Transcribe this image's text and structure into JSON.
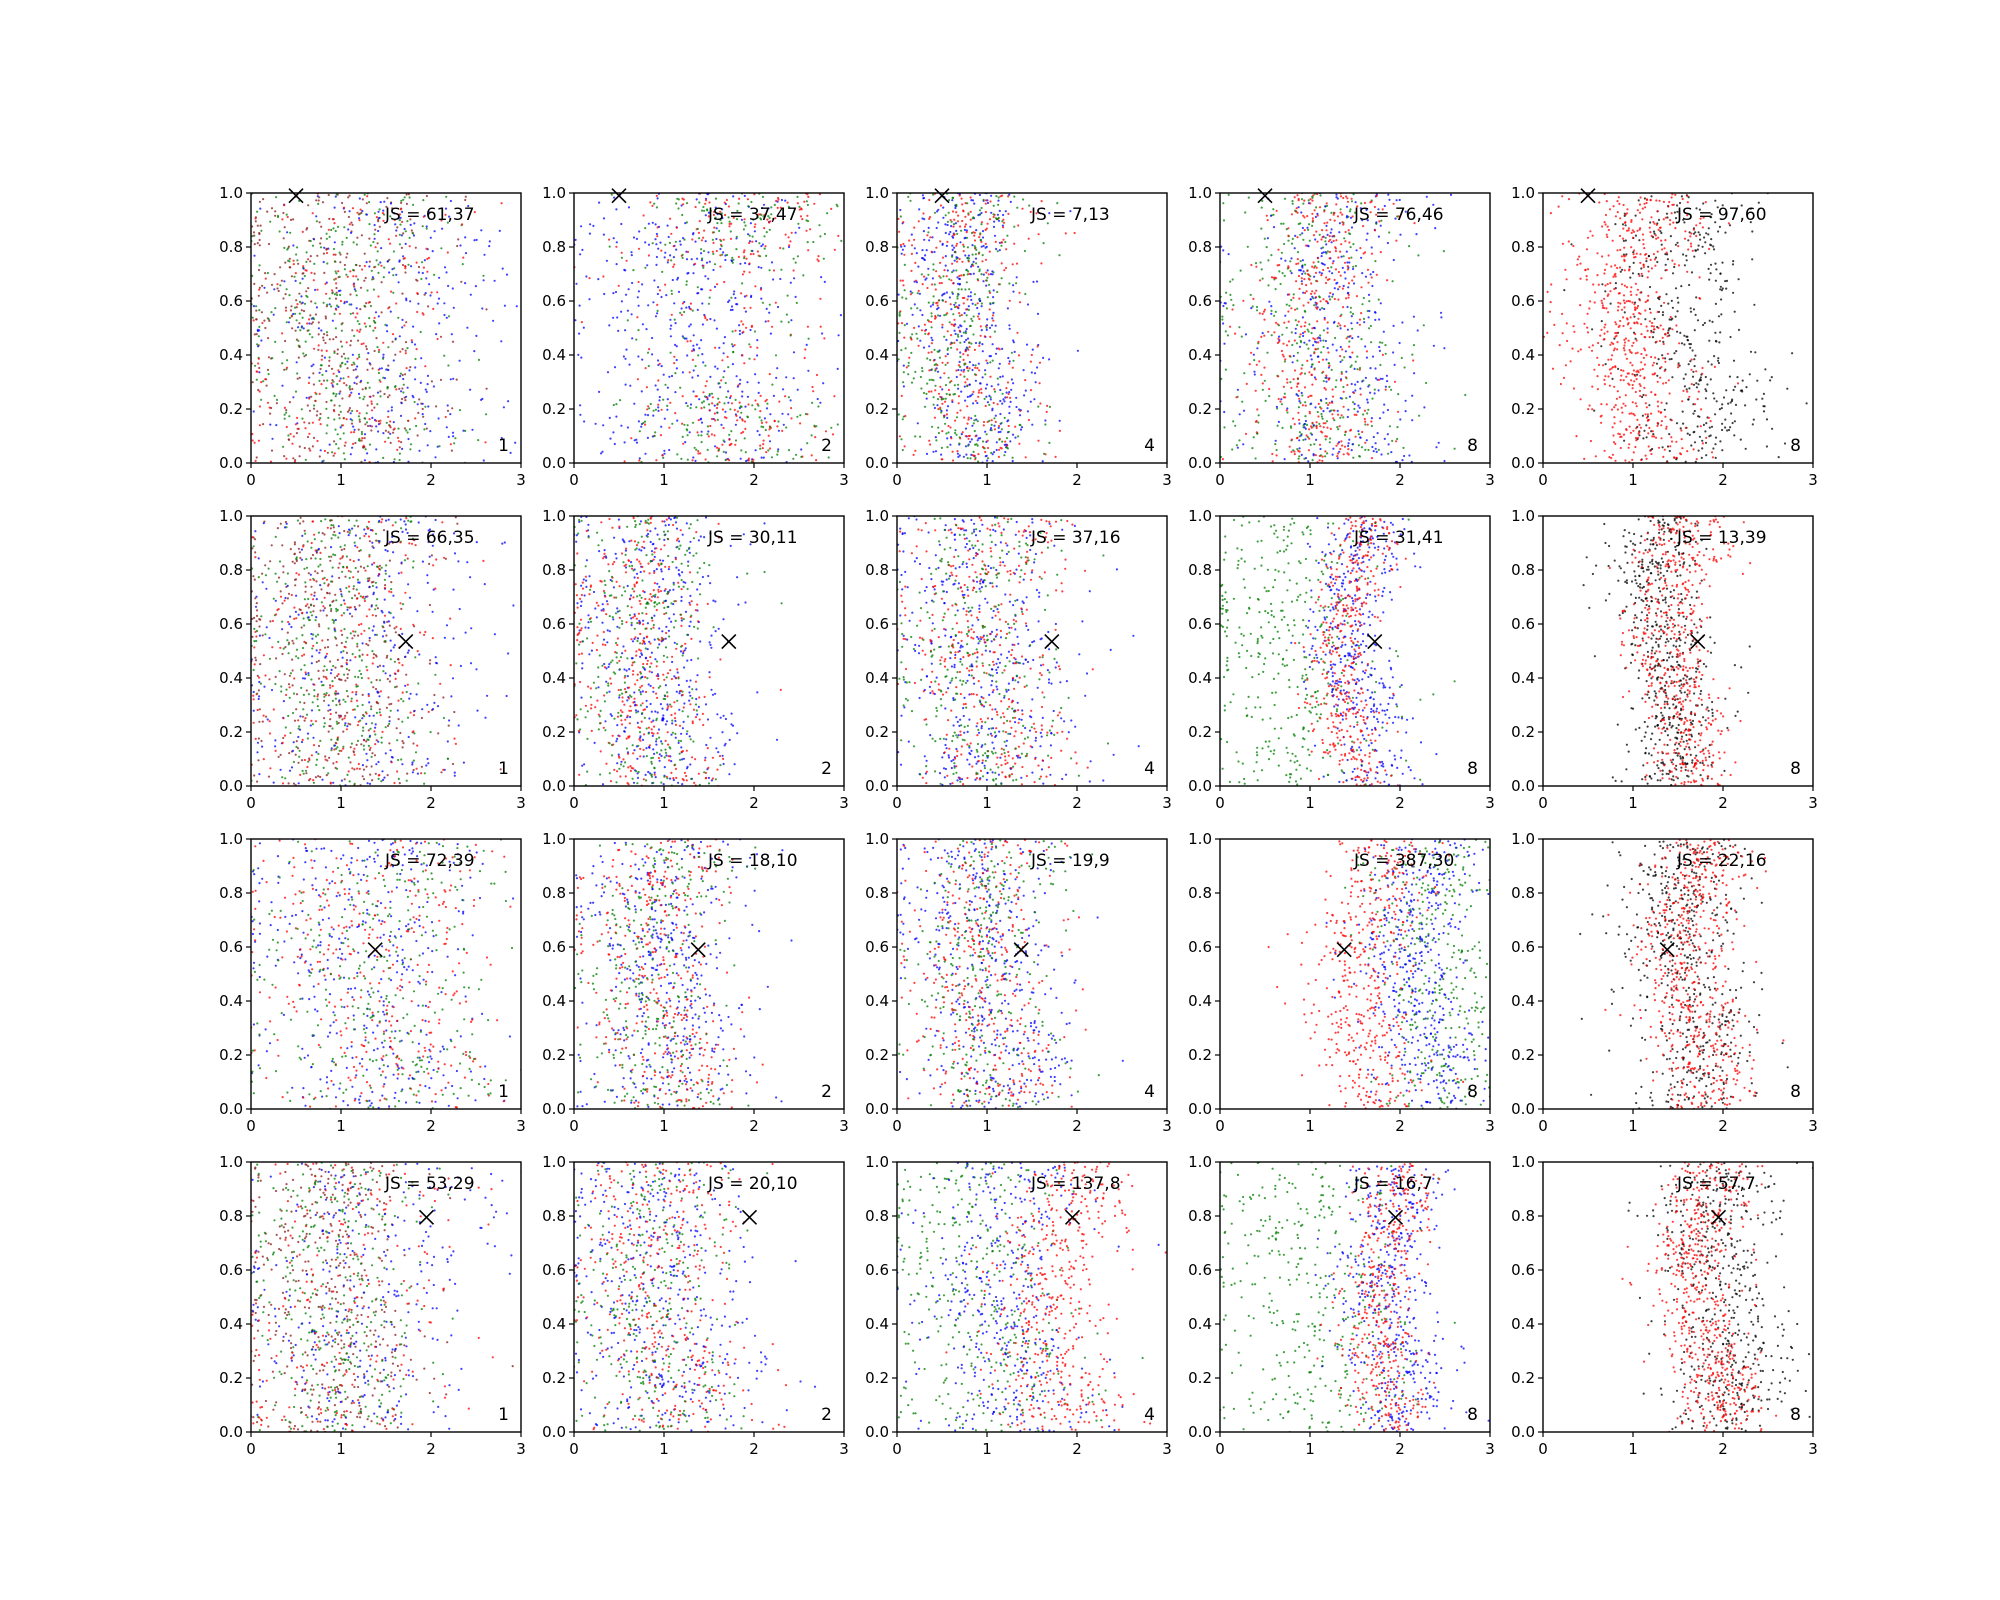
{
  "figure": {
    "rows": 4,
    "cols": 5,
    "xlim": [
      0,
      3
    ],
    "ylim": [
      0,
      1
    ],
    "x_ticks": [
      "0",
      "1",
      "2",
      "3"
    ],
    "y_ticks": [
      "0.0",
      "0.2",
      "0.4",
      "0.6",
      "0.8",
      "1.0"
    ],
    "marker": "x",
    "marker_color": "#000000",
    "colors": {
      "red": "#ff0000",
      "green": "#008000",
      "blue": "#0000ff",
      "black": "#000000",
      "brown": "#8b1a1a"
    }
  },
  "chart_data": [
    {
      "type": "scatter",
      "row": 0,
      "col": 0,
      "js_label": "JS = 61,37",
      "corner_label": "1",
      "marker": [
        0.5,
        0.99
      ],
      "series": [
        {
          "color": "#8b1a1a",
          "mean_x": 1.0,
          "spread_x": 0.6,
          "count": 380
        },
        {
          "color": "#008000",
          "mean_x": 1.05,
          "spread_x": 0.55,
          "count": 340
        },
        {
          "color": "#0000ff",
          "mean_x": 1.5,
          "spread_x": 0.7,
          "count": 300
        },
        {
          "color": "#ff0000",
          "mean_x": 1.1,
          "spread_x": 0.7,
          "count": 220
        }
      ]
    },
    {
      "type": "scatter",
      "row": 0,
      "col": 1,
      "js_label": "JS = 37,47",
      "corner_label": "2",
      "marker": [
        0.5,
        0.99
      ],
      "series": [
        {
          "color": "#0000ff",
          "mean_x": 1.4,
          "spread_x": 0.7,
          "count": 420
        },
        {
          "color": "#ff0000",
          "mean_x": 1.7,
          "spread_x": 0.6,
          "count": 320,
          "edge_bias": true
        },
        {
          "color": "#008000",
          "mean_x": 1.7,
          "spread_x": 0.6,
          "count": 280,
          "edge_bias": true
        }
      ]
    },
    {
      "type": "scatter",
      "row": 0,
      "col": 2,
      "js_label": "JS = 7,13",
      "corner_label": "4",
      "marker": [
        0.5,
        0.99
      ],
      "series": [
        {
          "color": "#0000ff",
          "mean_x": 0.85,
          "spread_x": 0.35,
          "count": 420
        },
        {
          "color": "#ff0000",
          "mean_x": 0.75,
          "spread_x": 0.4,
          "count": 360
        },
        {
          "color": "#008000",
          "mean_x": 0.7,
          "spread_x": 0.4,
          "count": 320
        }
      ]
    },
    {
      "type": "scatter",
      "row": 0,
      "col": 3,
      "js_label": "JS = 76,46",
      "corner_label": "8",
      "marker": [
        0.5,
        0.99
      ],
      "series": [
        {
          "color": "#008000",
          "mean_x": 1.0,
          "spread_x": 0.55,
          "count": 360
        },
        {
          "color": "#0000ff",
          "mean_x": 1.3,
          "spread_x": 0.5,
          "count": 360
        },
        {
          "color": "#ff0000",
          "mean_x": 1.1,
          "spread_x": 0.35,
          "count": 420
        }
      ]
    },
    {
      "type": "scatter",
      "row": 0,
      "col": 4,
      "js_label": "JS = 97,60",
      "corner_label": "8",
      "marker": [
        0.5,
        0.99
      ],
      "series": [
        {
          "color": "#000000",
          "mean_x": 1.6,
          "spread_x": 0.4,
          "count": 420
        },
        {
          "color": "#ff0000",
          "mean_x": 1.05,
          "spread_x": 0.35,
          "count": 620
        }
      ]
    },
    {
      "type": "scatter",
      "row": 1,
      "col": 0,
      "js_label": "JS = 66,35",
      "corner_label": "1",
      "marker": [
        1.72,
        0.535
      ],
      "series": [
        {
          "color": "#8b1a1a",
          "mean_x": 0.9,
          "spread_x": 0.55,
          "count": 380
        },
        {
          "color": "#008000",
          "mean_x": 0.95,
          "spread_x": 0.5,
          "count": 340
        },
        {
          "color": "#0000ff",
          "mean_x": 1.3,
          "spread_x": 0.7,
          "count": 300
        },
        {
          "color": "#ff0000",
          "mean_x": 1.0,
          "spread_x": 0.6,
          "count": 240
        }
      ]
    },
    {
      "type": "scatter",
      "row": 1,
      "col": 1,
      "js_label": "JS = 30,11",
      "corner_label": "2",
      "marker": [
        1.72,
        0.535
      ],
      "series": [
        {
          "color": "#0000ff",
          "mean_x": 0.9,
          "spread_x": 0.45,
          "count": 420
        },
        {
          "color": "#ff0000",
          "mean_x": 0.8,
          "spread_x": 0.4,
          "count": 380
        },
        {
          "color": "#008000",
          "mean_x": 0.8,
          "spread_x": 0.4,
          "count": 300
        }
      ]
    },
    {
      "type": "scatter",
      "row": 1,
      "col": 2,
      "js_label": "JS = 37,16",
      "corner_label": "4",
      "marker": [
        1.72,
        0.535
      ],
      "series": [
        {
          "color": "#0000ff",
          "mean_x": 1.0,
          "spread_x": 0.5,
          "count": 420
        },
        {
          "color": "#ff0000",
          "mean_x": 1.0,
          "spread_x": 0.45,
          "count": 380
        },
        {
          "color": "#008000",
          "mean_x": 0.9,
          "spread_x": 0.45,
          "count": 300
        }
      ]
    },
    {
      "type": "scatter",
      "row": 1,
      "col": 3,
      "js_label": "JS = 31,41",
      "corner_label": "8",
      "marker": [
        1.72,
        0.535
      ],
      "series": [
        {
          "color": "#008000",
          "mean_x": 0.8,
          "spread_x": 0.5,
          "count": 380
        },
        {
          "color": "#0000ff",
          "mean_x": 1.55,
          "spread_x": 0.25,
          "count": 420
        },
        {
          "color": "#ff0000",
          "mean_x": 1.45,
          "spread_x": 0.2,
          "count": 420
        }
      ]
    },
    {
      "type": "scatter",
      "row": 1,
      "col": 4,
      "js_label": "JS = 13,39",
      "corner_label": "8",
      "marker": [
        1.72,
        0.535
      ],
      "series": [
        {
          "color": "#000000",
          "mean_x": 1.35,
          "spread_x": 0.25,
          "count": 560
        },
        {
          "color": "#ff0000",
          "mean_x": 1.5,
          "spread_x": 0.25,
          "count": 560
        }
      ]
    },
    {
      "type": "scatter",
      "row": 2,
      "col": 0,
      "js_label": "JS = 72,39",
      "corner_label": "1",
      "marker": [
        1.38,
        0.59
      ],
      "series": [
        {
          "color": "#0000ff",
          "mean_x": 1.3,
          "spread_x": 0.7,
          "count": 380
        },
        {
          "color": "#ff0000",
          "mean_x": 1.4,
          "spread_x": 0.7,
          "count": 340
        },
        {
          "color": "#008000",
          "mean_x": 1.4,
          "spread_x": 0.7,
          "count": 320
        }
      ]
    },
    {
      "type": "scatter",
      "row": 2,
      "col": 1,
      "js_label": "JS = 18,10",
      "corner_label": "2",
      "marker": [
        1.38,
        0.59
      ],
      "series": [
        {
          "color": "#0000ff",
          "mean_x": 1.0,
          "spread_x": 0.45,
          "count": 420
        },
        {
          "color": "#ff0000",
          "mean_x": 0.95,
          "spread_x": 0.4,
          "count": 380
        },
        {
          "color": "#008000",
          "mean_x": 0.9,
          "spread_x": 0.4,
          "count": 300
        }
      ]
    },
    {
      "type": "scatter",
      "row": 2,
      "col": 2,
      "js_label": "JS = 19,9",
      "corner_label": "4",
      "marker": [
        1.38,
        0.59
      ],
      "series": [
        {
          "color": "#0000ff",
          "mean_x": 1.0,
          "spread_x": 0.45,
          "count": 440
        },
        {
          "color": "#ff0000",
          "mean_x": 0.95,
          "spread_x": 0.4,
          "count": 380
        },
        {
          "color": "#008000",
          "mean_x": 0.95,
          "spread_x": 0.4,
          "count": 300
        }
      ]
    },
    {
      "type": "scatter",
      "row": 2,
      "col": 3,
      "js_label": "JS = 387,30",
      "corner_label": "8",
      "marker": [
        1.38,
        0.59
      ],
      "series": [
        {
          "color": "#008000",
          "mean_x": 2.4,
          "spread_x": 0.35,
          "count": 360
        },
        {
          "color": "#0000ff",
          "mean_x": 2.25,
          "spread_x": 0.3,
          "count": 460
        },
        {
          "color": "#ff0000",
          "mean_x": 1.65,
          "spread_x": 0.3,
          "count": 460
        }
      ]
    },
    {
      "type": "scatter",
      "row": 2,
      "col": 4,
      "js_label": "JS = 22,16",
      "corner_label": "8",
      "marker": [
        1.38,
        0.59
      ],
      "series": [
        {
          "color": "#000000",
          "mean_x": 1.6,
          "spread_x": 0.35,
          "count": 520
        },
        {
          "color": "#ff0000",
          "mean_x": 1.7,
          "spread_x": 0.28,
          "count": 600
        }
      ]
    },
    {
      "type": "scatter",
      "row": 3,
      "col": 0,
      "js_label": "JS = 53,29",
      "corner_label": "1",
      "marker": [
        1.95,
        0.795
      ],
      "series": [
        {
          "color": "#8b1a1a",
          "mean_x": 0.9,
          "spread_x": 0.55,
          "count": 380
        },
        {
          "color": "#008000",
          "mean_x": 0.95,
          "spread_x": 0.5,
          "count": 340
        },
        {
          "color": "#0000ff",
          "mean_x": 1.35,
          "spread_x": 0.7,
          "count": 300
        },
        {
          "color": "#ff0000",
          "mean_x": 1.0,
          "spread_x": 0.6,
          "count": 220
        }
      ]
    },
    {
      "type": "scatter",
      "row": 3,
      "col": 1,
      "js_label": "JS = 20,10",
      "corner_label": "2",
      "marker": [
        1.95,
        0.795
      ],
      "series": [
        {
          "color": "#0000ff",
          "mean_x": 0.95,
          "spread_x": 0.5,
          "count": 420
        },
        {
          "color": "#ff0000",
          "mean_x": 0.95,
          "spread_x": 0.45,
          "count": 380
        },
        {
          "color": "#008000",
          "mean_x": 0.9,
          "spread_x": 0.45,
          "count": 300
        }
      ]
    },
    {
      "type": "scatter",
      "row": 3,
      "col": 2,
      "js_label": "JS = 137,8",
      "corner_label": "4",
      "marker": [
        1.95,
        0.795
      ],
      "series": [
        {
          "color": "#008000",
          "mean_x": 0.9,
          "spread_x": 0.55,
          "count": 360
        },
        {
          "color": "#0000ff",
          "mean_x": 1.2,
          "spread_x": 0.5,
          "count": 400
        },
        {
          "color": "#ff0000",
          "mean_x": 1.8,
          "spread_x": 0.35,
          "count": 460
        }
      ]
    },
    {
      "type": "scatter",
      "row": 3,
      "col": 3,
      "js_label": "JS = 16,7",
      "corner_label": "8",
      "marker": [
        1.95,
        0.795
      ],
      "series": [
        {
          "color": "#008000",
          "mean_x": 1.0,
          "spread_x": 0.6,
          "count": 380
        },
        {
          "color": "#0000ff",
          "mean_x": 1.95,
          "spread_x": 0.28,
          "count": 440
        },
        {
          "color": "#ff0000",
          "mean_x": 1.85,
          "spread_x": 0.22,
          "count": 440
        }
      ]
    },
    {
      "type": "scatter",
      "row": 3,
      "col": 4,
      "js_label": "JS = 57,7",
      "corner_label": "8",
      "marker": [
        1.95,
        0.795
      ],
      "series": [
        {
          "color": "#000000",
          "mean_x": 2.0,
          "spread_x": 0.35,
          "count": 520
        },
        {
          "color": "#ff0000",
          "mean_x": 1.8,
          "spread_x": 0.25,
          "count": 600
        }
      ]
    }
  ]
}
